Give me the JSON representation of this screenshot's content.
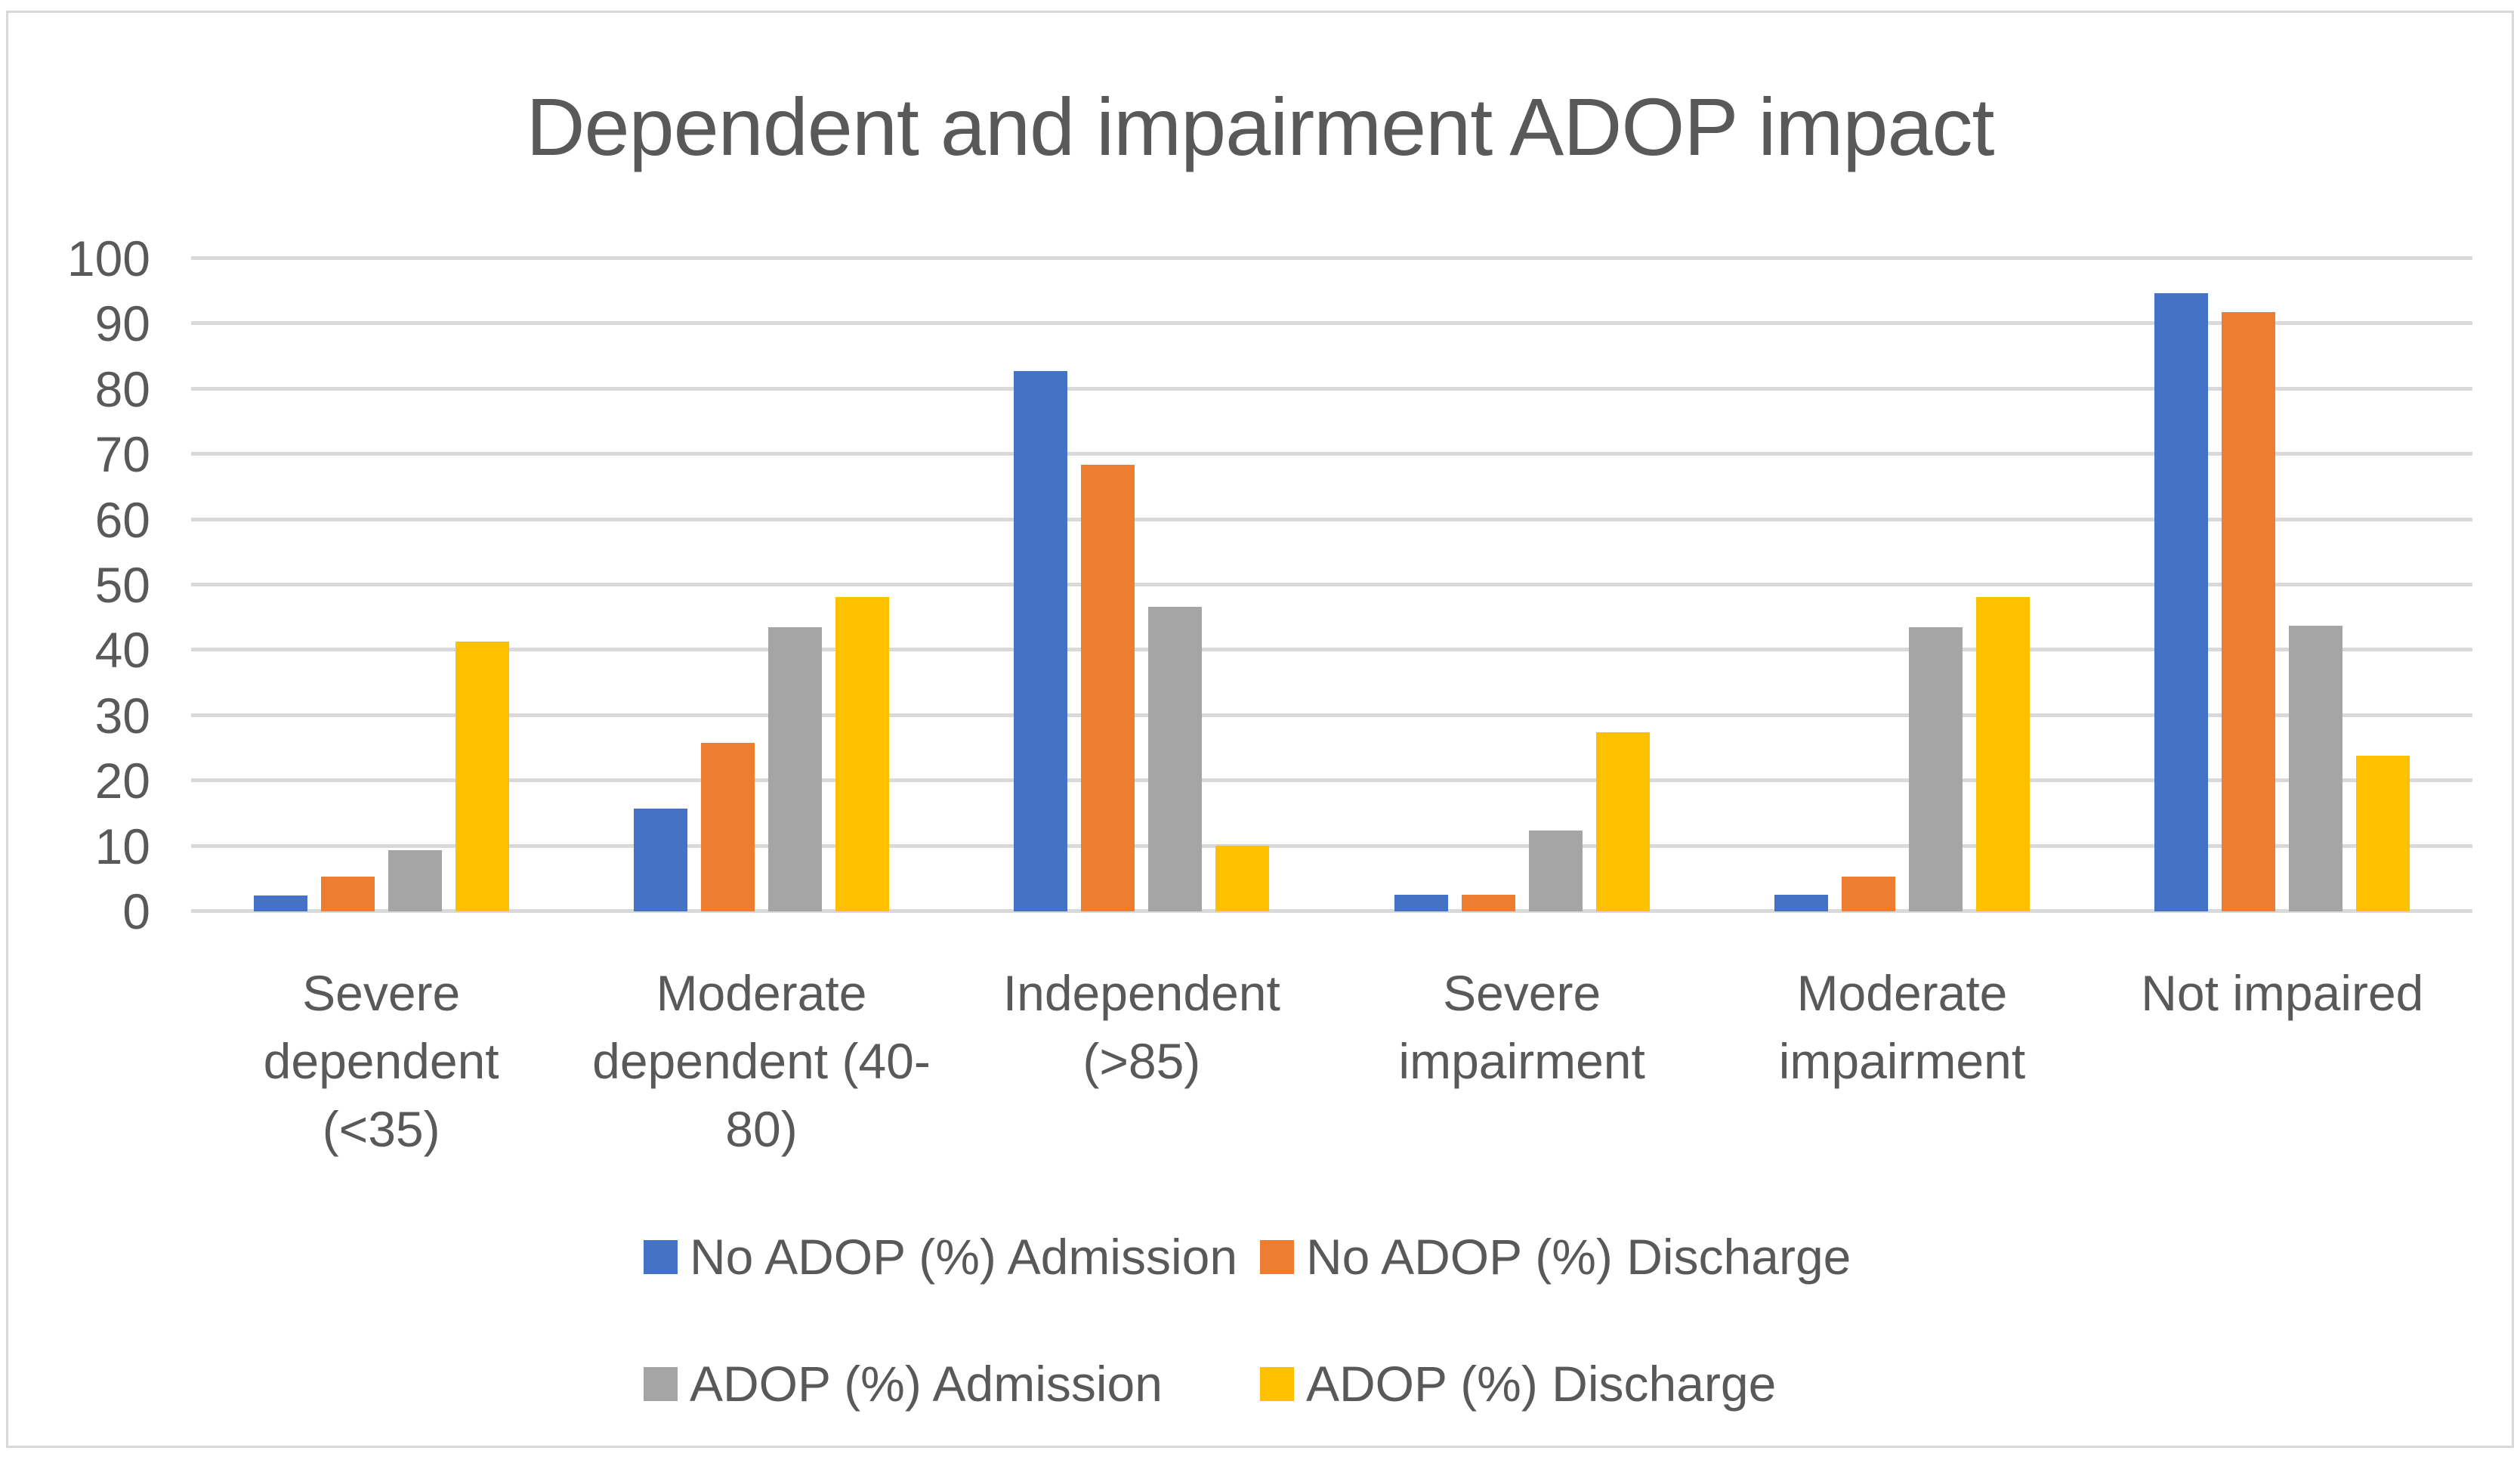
{
  "title": "Dependent and impairment ADOP impact",
  "chart_data": {
    "type": "bar",
    "title": "Dependent and impairment ADOP impact",
    "categories": [
      "Severe dependent (<35)",
      "Moderate dependent (40-80)",
      "Independent (>85)",
      "Severe impairment",
      "Moderate impairment",
      "Not impaired"
    ],
    "series": [
      {
        "name": "No ADOP (%) Admission",
        "color": "#4472C4",
        "values": [
          2.4,
          15.8,
          82.8,
          2.6,
          2.6,
          94.7
        ]
      },
      {
        "name": "No ADOP (%) Discharge",
        "color": "#ED7D31",
        "values": [
          5.3,
          25.8,
          68.4,
          2.6,
          5.3,
          91.8
        ]
      },
      {
        "name": "ADOP (%) Admission",
        "color": "#A5A5A5",
        "values": [
          9.4,
          43.5,
          46.7,
          12.4,
          43.5,
          43.7
        ]
      },
      {
        "name": "ADOP (%) Discharge",
        "color": "#FFC000",
        "values": [
          41.3,
          48.1,
          10.1,
          27.4,
          48.1,
          23.8
        ]
      }
    ],
    "ylim": [
      0,
      100
    ],
    "ytick_step": 10,
    "xlabel": "",
    "ylabel": "",
    "grid": true,
    "legend_position": "bottom",
    "legend_layout_rows": 2
  },
  "colors": {
    "text": "#595959",
    "gridline": "#D9D9D9",
    "frame_border": "#D9D9D9",
    "background": "#FFFFFF"
  }
}
